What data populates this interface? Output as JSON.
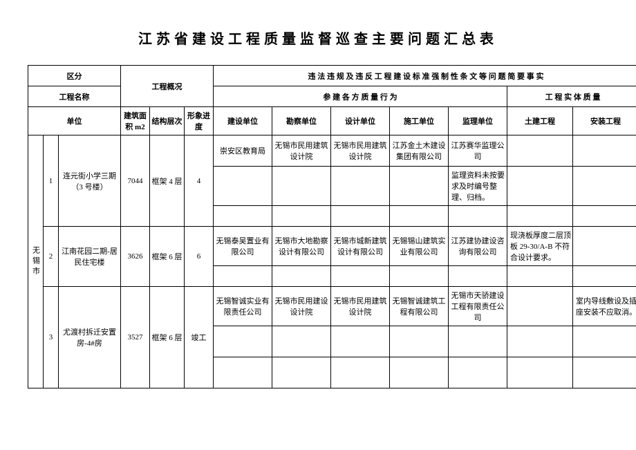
{
  "title": "江苏省建设工程质量监督巡查主要问题汇总表",
  "header": {
    "region": "区分",
    "project_name": "工程名称",
    "unit": "单位",
    "overview": "工程概况",
    "area": "建筑面积 m2",
    "struct": "结构层次",
    "progress": "形象进度",
    "violation": "违 法 违 规 及 违 反 工 程 建 设 标 准 强 制 性 条 文 等 问 题 简 要 事 实",
    "participants": "参 建 各 方 质 量 行 为",
    "entity_quality": "工 程 实 体 质 量",
    "build_unit": "建设单位",
    "survey_unit": "勘察单位",
    "design_unit": "设计单位",
    "constr_unit": "施工单位",
    "sup_unit": "监理单位",
    "civil": "土建工程",
    "install": "安装工程"
  },
  "city": "无锡市",
  "rows": [
    {
      "idx": "1",
      "name": "连元街小学三期（3 号楼）",
      "area": "7044",
      "struct": "框架 4 层",
      "progress": "4",
      "sub": [
        {
          "build": "崇安区教育局",
          "survey": "无锡市民用建筑设计院",
          "design": "无锡市民用建筑设计院",
          "constr": "江苏金土木建设集团有限公司",
          "sup": "江苏赛华监理公司",
          "civil": "",
          "install": ""
        },
        {
          "build": "",
          "survey": "",
          "design": "",
          "constr": "",
          "sup": "监理资料未按要求及时编号整理、归档。",
          "civil": "",
          "install": ""
        },
        {
          "build": "",
          "survey": "",
          "design": "",
          "constr": "",
          "sup": "",
          "civil": "",
          "install": ""
        }
      ]
    },
    {
      "idx": "2",
      "name": "江南花园二期-居民住宅楼",
      "area": "3626",
      "struct": "框架 6 层",
      "progress": "6",
      "sub": [
        {
          "build": "无锡泰吴置业有限公司",
          "survey": "无锡市大地勘察设计有限公司",
          "design": "无锡市城新建筑设计有限公司",
          "constr": "无锡锡山建筑实业有限公司",
          "sup": "江苏建协建设咨询有限公司",
          "civil": "现浇板厚度二层顶板 29-30/A-B 不符合设计要求。",
          "install": ""
        },
        {
          "build": "",
          "survey": "",
          "design": "",
          "constr": "",
          "sup": "",
          "civil": "",
          "install": ""
        }
      ]
    },
    {
      "idx": "3",
      "name": "尤渡村拆迁安置房-4#房",
      "area": "3527",
      "struct": "框架 6 层",
      "progress": "竣工",
      "sub": [
        {
          "build": "无锡智诚实业有限责任公司",
          "survey": "无锡市民用建设设计院",
          "design": "无锡市民用建筑设计院",
          "constr": "无锡智诚建筑工程有限公司",
          "sup": "无锡市天骄建设工程有限责任公司",
          "civil": "",
          "install": "室内导线敷设及插座安装不应取消。"
        },
        {
          "build": "",
          "survey": "",
          "design": "",
          "constr": "",
          "sup": "",
          "civil": "",
          "install": ""
        },
        {
          "build": "",
          "survey": "",
          "design": "",
          "constr": "",
          "sup": "",
          "civil": "",
          "install": ""
        }
      ]
    }
  ]
}
